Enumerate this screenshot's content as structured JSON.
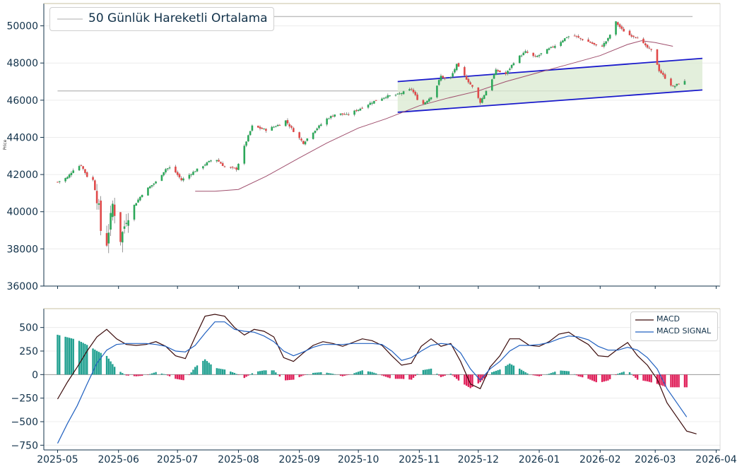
{
  "chart_data": [
    {
      "type": "candlestick",
      "ylabel": "Price",
      "ylim": [
        36000,
        51200
      ],
      "yticks": [
        36000,
        38000,
        40000,
        42000,
        44000,
        46000,
        48000,
        50000
      ],
      "ytick_labels": [
        "36000",
        "38000",
        "40000",
        "42000",
        "44000",
        "46000",
        "48000",
        "50000"
      ],
      "legend": {
        "label": "50 Günlük Hareketli Ortalama",
        "position": "top-left"
      },
      "colors": {
        "up": "#2ca85a",
        "down": "#e04a4a",
        "ma": "#a0506e",
        "channel": "#1a1acc",
        "channel_fill": "#d9ead0",
        "hline": "#bdbdbd",
        "axis": "#12324a"
      },
      "horizontal_lines": [
        {
          "y": 50500,
          "x_start": "2025-05-03",
          "x_end": "2026-03-20"
        },
        {
          "y": 46500,
          "x_start": "2025-05-01",
          "x_end": "2026-03-20"
        }
      ],
      "channel": {
        "upper": [
          [
            "2025-10-21",
            47000
          ],
          [
            "2026-03-25",
            48250
          ]
        ],
        "lower": [
          [
            "2025-10-21",
            45350
          ],
          [
            "2026-03-25",
            46550
          ]
        ]
      },
      "close_keypoints": [
        [
          "2025-05-01",
          41600
        ],
        [
          "2025-05-06",
          41850
        ],
        [
          "2025-05-10",
          42400
        ],
        [
          "2025-05-13",
          42500
        ],
        [
          "2025-05-16",
          41900
        ],
        [
          "2025-05-19",
          41700
        ],
        [
          "2025-05-22",
          40200
        ],
        [
          "2025-05-24",
          37800
        ],
        [
          "2025-05-26",
          38300
        ],
        [
          "2025-05-29",
          40400
        ],
        [
          "2025-06-02",
          38500
        ],
        [
          "2025-06-05",
          39600
        ],
        [
          "2025-06-08",
          40200
        ],
        [
          "2025-06-14",
          41100
        ],
        [
          "2025-06-20",
          41600
        ],
        [
          "2025-06-25",
          42300
        ],
        [
          "2025-06-28",
          42400
        ],
        [
          "2025-07-03",
          41700
        ],
        [
          "2025-07-10",
          42200
        ],
        [
          "2025-07-20",
          42900
        ],
        [
          "2025-07-25",
          42400
        ],
        [
          "2025-07-31",
          42300
        ],
        [
          "2025-08-05",
          43800
        ],
        [
          "2025-08-08",
          44600
        ],
        [
          "2025-08-15",
          44400
        ],
        [
          "2025-08-22",
          44700
        ],
        [
          "2025-08-25",
          44900
        ],
        [
          "2025-08-30",
          44200
        ],
        [
          "2025-09-03",
          43700
        ],
        [
          "2025-09-08",
          44300
        ],
        [
          "2025-09-15",
          45000
        ],
        [
          "2025-09-20",
          45300
        ],
        [
          "2025-09-25",
          45200
        ],
        [
          "2025-10-01",
          45500
        ],
        [
          "2025-10-08",
          45900
        ],
        [
          "2025-10-15",
          46200
        ],
        [
          "2025-10-21",
          46300
        ],
        [
          "2025-10-28",
          46600
        ],
        [
          "2025-11-02",
          45700
        ],
        [
          "2025-11-08",
          46300
        ],
        [
          "2025-11-12",
          47300
        ],
        [
          "2025-11-16",
          47000
        ],
        [
          "2025-11-20",
          47900
        ],
        [
          "2025-11-24",
          47300
        ],
        [
          "2025-11-28",
          46700
        ],
        [
          "2025-12-02",
          45900
        ],
        [
          "2025-12-06",
          46700
        ],
        [
          "2025-12-10",
          47600
        ],
        [
          "2025-12-15",
          47400
        ],
        [
          "2025-12-20",
          48200
        ],
        [
          "2025-12-25",
          48600
        ],
        [
          "2025-12-30",
          48300
        ],
        [
          "2026-01-05",
          48700
        ],
        [
          "2026-01-10",
          49000
        ],
        [
          "2026-01-15",
          49400
        ],
        [
          "2026-01-18",
          49500
        ],
        [
          "2026-01-22",
          49300
        ],
        [
          "2026-01-27",
          49100
        ],
        [
          "2026-02-01",
          48800
        ],
        [
          "2026-02-05",
          49300
        ],
        [
          "2026-02-09",
          50200
        ],
        [
          "2026-02-12",
          49800
        ],
        [
          "2026-02-16",
          49500
        ],
        [
          "2026-02-20",
          49400
        ],
        [
          "2026-02-24",
          48900
        ],
        [
          "2026-02-28",
          48600
        ],
        [
          "2026-03-03",
          47600
        ],
        [
          "2026-03-06",
          47200
        ],
        [
          "2026-03-10",
          46700
        ],
        [
          "2026-03-13",
          46900
        ],
        [
          "2026-03-16",
          47000
        ]
      ],
      "ma50": [
        [
          "2025-07-10",
          41100
        ],
        [
          "2025-07-20",
          41100
        ],
        [
          "2025-08-01",
          41200
        ],
        [
          "2025-08-15",
          41900
        ],
        [
          "2025-09-01",
          42900
        ],
        [
          "2025-09-15",
          43700
        ],
        [
          "2025-10-01",
          44500
        ],
        [
          "2025-10-15",
          45000
        ],
        [
          "2025-11-01",
          45700
        ],
        [
          "2025-11-15",
          46100
        ],
        [
          "2025-12-01",
          46500
        ],
        [
          "2025-12-15",
          47000
        ],
        [
          "2026-01-01",
          47500
        ],
        [
          "2026-01-15",
          47900
        ],
        [
          "2026-02-01",
          48400
        ],
        [
          "2026-02-15",
          49000
        ],
        [
          "2026-02-22",
          49200
        ],
        [
          "2026-03-01",
          49100
        ],
        [
          "2026-03-10",
          48900
        ]
      ]
    },
    {
      "type": "line",
      "ylim": [
        -800,
        700
      ],
      "yticks": [
        -750,
        -500,
        -250,
        0,
        250,
        500
      ],
      "ytick_labels": [
        "−750",
        "−500",
        "−250",
        "0",
        "250",
        "500"
      ],
      "xticks": [
        "2025-05-01",
        "2025-06-01",
        "2025-07-01",
        "2025-08-01",
        "2025-09-01",
        "2025-10-01",
        "2025-11-01",
        "2025-12-01",
        "2026-01-01",
        "2026-02-01",
        "2026-03-01",
        "2026-04-01"
      ],
      "xtick_labels": [
        "2025-05",
        "2025-06",
        "2025-07",
        "2025-08",
        "2025-09",
        "2025-10",
        "2025-11",
        "2025-12",
        "2026-01",
        "2026-02",
        "2026-03",
        "2026-04"
      ],
      "legend_position": "top-right",
      "series": [
        {
          "name": "MACD",
          "color": "#3a0a0a",
          "points": [
            [
              "2025-05-01",
              -260
            ],
            [
              "2025-05-06",
              -80
            ],
            [
              "2025-05-11",
              80
            ],
            [
              "2025-05-16",
              250
            ],
            [
              "2025-05-21",
              400
            ],
            [
              "2025-05-26",
              480
            ],
            [
              "2025-05-31",
              380
            ],
            [
              "2025-06-05",
              320
            ],
            [
              "2025-06-10",
              310
            ],
            [
              "2025-06-15",
              320
            ],
            [
              "2025-06-20",
              350
            ],
            [
              "2025-06-25",
              300
            ],
            [
              "2025-06-30",
              200
            ],
            [
              "2025-07-05",
              170
            ],
            [
              "2025-07-10",
              400
            ],
            [
              "2025-07-15",
              620
            ],
            [
              "2025-07-20",
              640
            ],
            [
              "2025-07-25",
              620
            ],
            [
              "2025-07-30",
              500
            ],
            [
              "2025-08-04",
              420
            ],
            [
              "2025-08-09",
              480
            ],
            [
              "2025-08-14",
              460
            ],
            [
              "2025-08-19",
              400
            ],
            [
              "2025-08-24",
              180
            ],
            [
              "2025-08-29",
              140
            ],
            [
              "2025-09-03",
              230
            ],
            [
              "2025-09-08",
              310
            ],
            [
              "2025-09-13",
              350
            ],
            [
              "2025-09-18",
              330
            ],
            [
              "2025-09-23",
              300
            ],
            [
              "2025-09-28",
              340
            ],
            [
              "2025-10-03",
              380
            ],
            [
              "2025-10-08",
              360
            ],
            [
              "2025-10-13",
              310
            ],
            [
              "2025-10-18",
              200
            ],
            [
              "2025-10-23",
              100
            ],
            [
              "2025-10-28",
              120
            ],
            [
              "2025-11-02",
              300
            ],
            [
              "2025-11-07",
              380
            ],
            [
              "2025-11-12",
              300
            ],
            [
              "2025-11-17",
              330
            ],
            [
              "2025-11-22",
              140
            ],
            [
              "2025-11-27",
              -100
            ],
            [
              "2025-12-02",
              -150
            ],
            [
              "2025-12-07",
              80
            ],
            [
              "2025-12-12",
              200
            ],
            [
              "2025-12-17",
              380
            ],
            [
              "2025-12-22",
              380
            ],
            [
              "2025-12-27",
              310
            ],
            [
              "2026-01-01",
              300
            ],
            [
              "2026-01-06",
              350
            ],
            [
              "2026-01-11",
              430
            ],
            [
              "2026-01-16",
              450
            ],
            [
              "2026-01-21",
              380
            ],
            [
              "2026-01-26",
              320
            ],
            [
              "2026-01-31",
              200
            ],
            [
              "2026-02-05",
              190
            ],
            [
              "2026-02-10",
              270
            ],
            [
              "2026-02-15",
              340
            ],
            [
              "2026-02-20",
              200
            ],
            [
              "2026-02-25",
              100
            ],
            [
              "2026-03-02",
              -50
            ],
            [
              "2026-03-07",
              -300
            ],
            [
              "2026-03-12",
              -450
            ],
            [
              "2026-03-17",
              -600
            ],
            [
              "2026-03-22",
              -630
            ]
          ]
        },
        {
          "name": "MACD SIGNAL",
          "color": "#2060c0",
          "points": [
            [
              "2025-05-01",
              -730
            ],
            [
              "2025-05-06",
              -520
            ],
            [
              "2025-05-11",
              -330
            ],
            [
              "2025-05-16",
              -100
            ],
            [
              "2025-05-21",
              120
            ],
            [
              "2025-05-26",
              260
            ],
            [
              "2025-05-31",
              320
            ],
            [
              "2025-06-05",
              330
            ],
            [
              "2025-06-10",
              330
            ],
            [
              "2025-06-15",
              330
            ],
            [
              "2025-06-20",
              320
            ],
            [
              "2025-06-25",
              300
            ],
            [
              "2025-06-30",
              250
            ],
            [
              "2025-07-05",
              240
            ],
            [
              "2025-07-10",
              310
            ],
            [
              "2025-07-15",
              440
            ],
            [
              "2025-07-20",
              560
            ],
            [
              "2025-07-25",
              560
            ],
            [
              "2025-07-30",
              480
            ],
            [
              "2025-08-04",
              460
            ],
            [
              "2025-08-09",
              450
            ],
            [
              "2025-08-14",
              410
            ],
            [
              "2025-08-19",
              350
            ],
            [
              "2025-08-24",
              250
            ],
            [
              "2025-08-29",
              200
            ],
            [
              "2025-09-03",
              240
            ],
            [
              "2025-09-08",
              290
            ],
            [
              "2025-09-13",
              320
            ],
            [
              "2025-09-18",
              320
            ],
            [
              "2025-09-23",
              320
            ],
            [
              "2025-09-28",
              330
            ],
            [
              "2025-10-03",
              330
            ],
            [
              "2025-10-08",
              330
            ],
            [
              "2025-10-13",
              320
            ],
            [
              "2025-10-18",
              250
            ],
            [
              "2025-10-23",
              150
            ],
            [
              "2025-10-28",
              180
            ],
            [
              "2025-11-02",
              250
            ],
            [
              "2025-11-07",
              310
            ],
            [
              "2025-11-12",
              330
            ],
            [
              "2025-11-17",
              320
            ],
            [
              "2025-11-22",
              230
            ],
            [
              "2025-11-27",
              60
            ],
            [
              "2025-12-02",
              -60
            ],
            [
              "2025-12-07",
              60
            ],
            [
              "2025-12-12",
              140
            ],
            [
              "2025-12-17",
              250
            ],
            [
              "2025-12-22",
              310
            ],
            [
              "2025-12-27",
              310
            ],
            [
              "2026-01-01",
              320
            ],
            [
              "2026-01-06",
              340
            ],
            [
              "2026-01-11",
              380
            ],
            [
              "2026-01-16",
              410
            ],
            [
              "2026-01-21",
              400
            ],
            [
              "2026-01-26",
              370
            ],
            [
              "2026-01-31",
              300
            ],
            [
              "2026-02-05",
              260
            ],
            [
              "2026-02-10",
              260
            ],
            [
              "2026-02-15",
              290
            ],
            [
              "2026-02-20",
              260
            ],
            [
              "2026-02-25",
              180
            ],
            [
              "2026-03-02",
              60
            ],
            [
              "2026-03-07",
              -150
            ],
            [
              "2026-03-12",
              -300
            ],
            [
              "2026-03-17",
              -450
            ]
          ]
        }
      ],
      "histogram_colors": {
        "positive": "#20a090",
        "negative": "#e0205a"
      }
    }
  ]
}
